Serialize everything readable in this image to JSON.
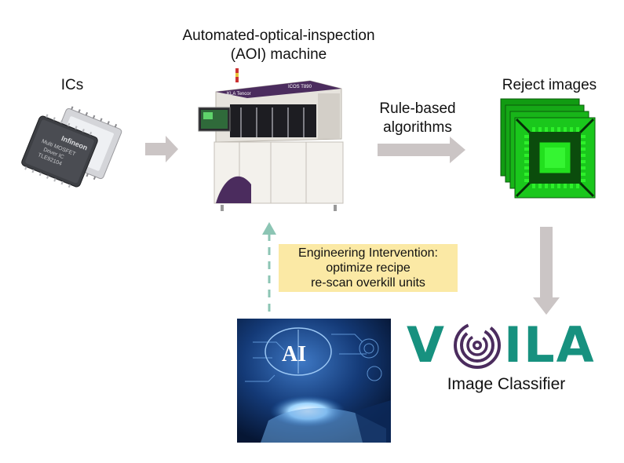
{
  "labels": {
    "aoi_machine": "Automated-optical-inspection",
    "aoi_machine_line2": "(AOI) machine",
    "ics": "ICs",
    "rule_based": "Rule-based",
    "rule_based_line2": "algorithms",
    "reject_images": "Reject images",
    "image_classifier": "Image Classifier"
  },
  "intervention": {
    "line1": "Engineering Intervention:",
    "line2": "optimize recipe",
    "line3": "re-scan overkill units"
  },
  "chip": {
    "brand": "Infineon",
    "line1": "Multi MOSFET",
    "line2": "Driver IC",
    "line3": "TLE92104"
  },
  "machine": {
    "brand": "KLA Tencor",
    "model": "ICOS T890"
  },
  "voila": {
    "left": "V",
    "right": "ILA"
  },
  "ai_image": {
    "text": "AI"
  },
  "colors": {
    "arrow_gray": "#cbc5c5",
    "dashed_teal": "#8cc5b4",
    "highlight": "#fbe9a5",
    "voila_teal": "#17917f",
    "reject_green": "#22e01e"
  }
}
